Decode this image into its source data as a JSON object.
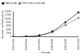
{
  "chart_data": {
    "type": "line",
    "x_label": "Decade",
    "y_label": "Number of Publications",
    "categories": [
      "1950-1959",
      "1960-1969",
      "1970-1979",
      "1980-1989",
      "1990-1999",
      "2000-2009"
    ],
    "series": [
      {
        "name": "MEDICAL",
        "color": "#222222",
        "marker": "diamond",
        "values": [
          0,
          200,
          800,
          3000,
          8000,
          13500
        ]
      },
      {
        "name": "PSYCHOLOGICAL",
        "color": "#888888",
        "marker": "square",
        "values": [
          0,
          100,
          600,
          2500,
          6500,
          10500
        ]
      }
    ],
    "ylim": [
      0,
      14000
    ],
    "yticks": [
      0,
      2000,
      4000,
      6000,
      8000,
      10000,
      12000,
      14000
    ],
    "grid": false,
    "legend": "upper left"
  }
}
